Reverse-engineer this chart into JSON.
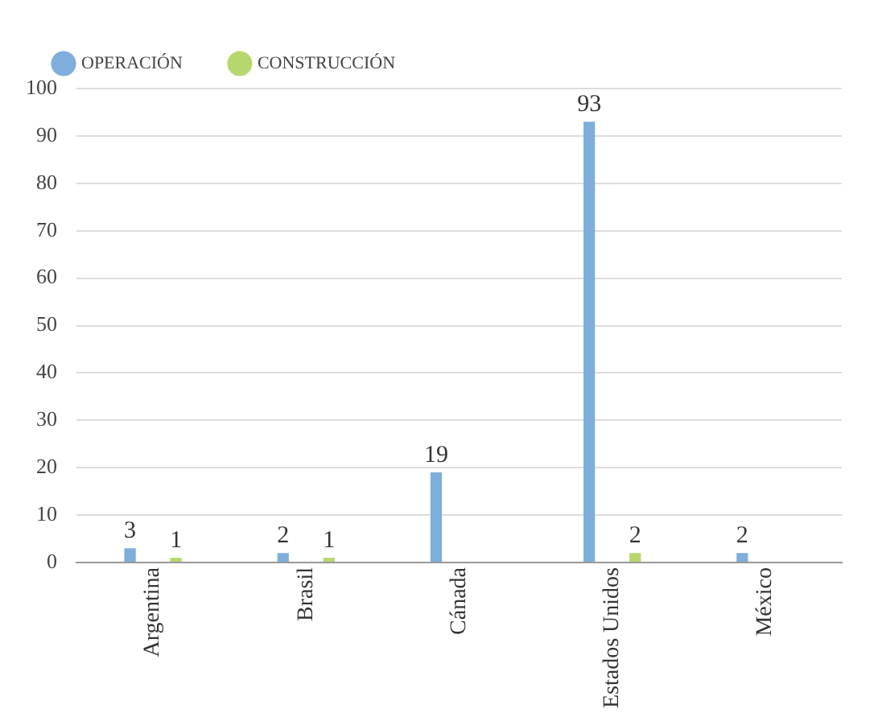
{
  "chart_data": {
    "type": "bar",
    "categories": [
      "Argentina",
      "Brasil",
      "Cánada",
      "Estados Unidos",
      "México"
    ],
    "series": [
      {
        "name": "OPERACIÓN",
        "color": "#7eaedb",
        "values": [
          3,
          2,
          19,
          93,
          2
        ]
      },
      {
        "name": "CONSTRUCCIÓN",
        "color": "#b7d76e",
        "values": [
          1,
          1,
          null,
          2,
          null
        ]
      }
    ],
    "ylim": [
      0,
      100
    ],
    "yticks": [
      0,
      10,
      20,
      30,
      40,
      50,
      60,
      70,
      80,
      90,
      100
    ],
    "grid": "y",
    "legend": "top left",
    "data_labels": true
  }
}
